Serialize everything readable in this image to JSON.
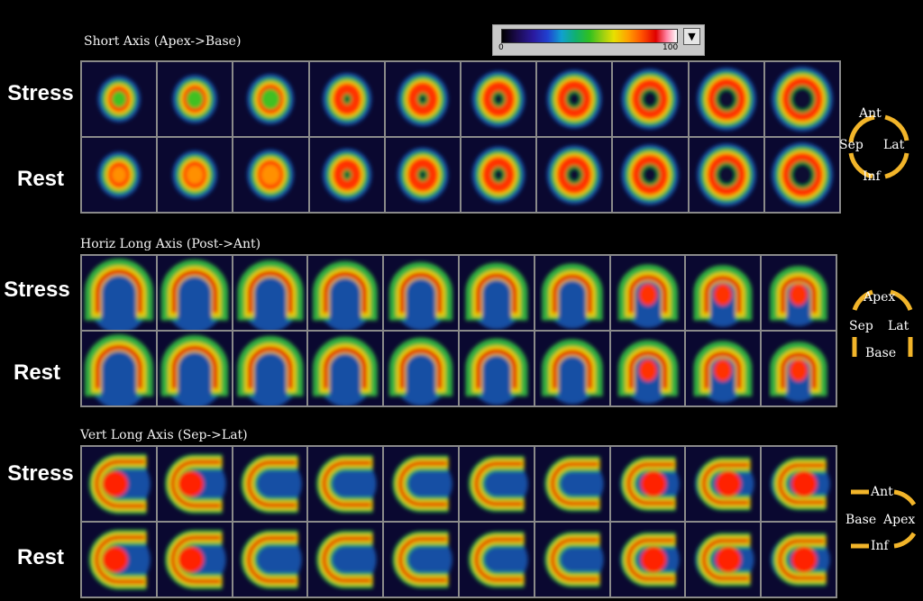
{
  "colorbar": {
    "min_label": "0",
    "max_label": "100",
    "button_icon": "triangle-down-icon",
    "button_glyph": "▼"
  },
  "sections": [
    {
      "title": "Short Axis (Apex->Base)",
      "rows": [
        "Stress",
        "Rest"
      ],
      "columns": 10,
      "view": "short",
      "orientation": [
        "Ant",
        "Sep",
        "Lat",
        "Inf"
      ]
    },
    {
      "title": "Horiz Long Axis (Post->Ant)",
      "rows": [
        "Stress",
        "Rest"
      ],
      "columns": 10,
      "view": "hla",
      "orientation": [
        "Apex",
        "Sep",
        "Lat",
        "Base"
      ]
    },
    {
      "title": "Vert Long Axis (Sep->Lat)",
      "rows": [
        "Stress",
        "Rest"
      ],
      "columns": 10,
      "view": "vla",
      "orientation": [
        "Ant",
        "Base",
        "Apex",
        "Inf"
      ]
    }
  ],
  "colors": {
    "background": "#000000",
    "tile_bg": "#0a0830",
    "border": "#8a8a8a",
    "orientation_marker": "#f2b52a"
  }
}
